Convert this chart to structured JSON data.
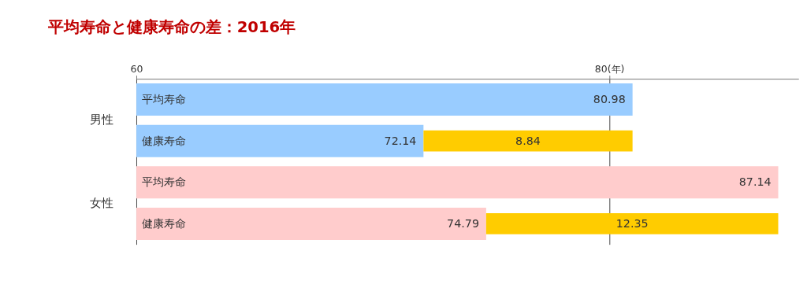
{
  "chart_data": {
    "type": "bar",
    "orientation": "horizontal",
    "title": "平均寿命と健康寿命の差：2016年",
    "categories": [
      "平均寿命",
      "健康寿命",
      "平均寿命",
      "健康寿命"
    ],
    "series": [
      {
        "colors": [
          "#99ccff",
          "#99ccff",
          "#ffcccc",
          "#ffcccc"
        ],
        "values": [
          80.98,
          72.14,
          87.14,
          74.79
        ]
      },
      {
        "color": "#ffcc00",
        "values": [
          null,
          8.84,
          null,
          12.35
        ],
        "base": [
          null,
          72.14,
          null,
          74.79
        ]
      }
    ],
    "xlim": [
      60,
      88
    ],
    "xticks": [
      60,
      {
        "value": 80,
        "label": "80(年)"
      }
    ],
    "grid": "x",
    "data_labels": true,
    "legend": false,
    "annotations": [
      "男性",
      "女性"
    ]
  }
}
